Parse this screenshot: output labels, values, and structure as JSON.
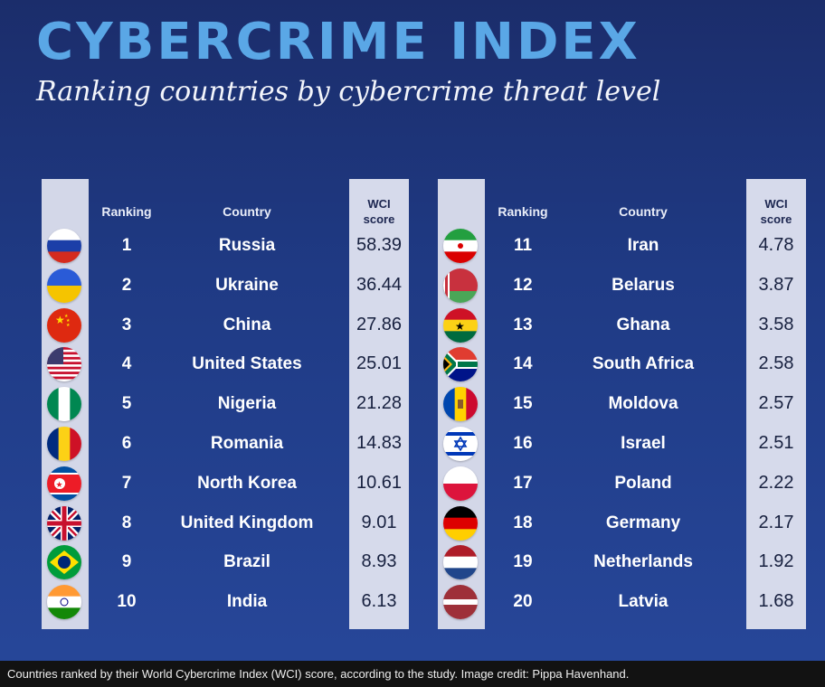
{
  "header": {
    "title": "CYBERCRIME INDEX",
    "subtitle": "Ranking countries by cybercrime threat level"
  },
  "columns": {
    "ranking": "Ranking",
    "country": "Country",
    "score_line1": "WCI",
    "score_line2": "score"
  },
  "chart_data": {
    "type": "table",
    "title": "CYBERCRIME INDEX",
    "subtitle": "Ranking countries by cybercrime threat level",
    "columns": [
      "Ranking",
      "Country",
      "WCI score"
    ],
    "rows": [
      {
        "rank": "1",
        "country": "Russia",
        "score": "58.39",
        "flag": "russia-flag-icon"
      },
      {
        "rank": "2",
        "country": "Ukraine",
        "score": "36.44",
        "flag": "ukraine-flag-icon"
      },
      {
        "rank": "3",
        "country": "China",
        "score": "27.86",
        "flag": "china-flag-icon"
      },
      {
        "rank": "4",
        "country": "United States",
        "score": "25.01",
        "flag": "united-states-flag-icon"
      },
      {
        "rank": "5",
        "country": "Nigeria",
        "score": "21.28",
        "flag": "nigeria-flag-icon"
      },
      {
        "rank": "6",
        "country": "Romania",
        "score": "14.83",
        "flag": "romania-flag-icon"
      },
      {
        "rank": "7",
        "country": "North Korea",
        "score": "10.61",
        "flag": "north-korea-flag-icon"
      },
      {
        "rank": "8",
        "country": "United Kingdom",
        "score": "9.01",
        "flag": "united-kingdom-flag-icon"
      },
      {
        "rank": "9",
        "country": "Brazil",
        "score": "8.93",
        "flag": "brazil-flag-icon"
      },
      {
        "rank": "10",
        "country": "India",
        "score": "6.13",
        "flag": "india-flag-icon"
      },
      {
        "rank": "11",
        "country": "Iran",
        "score": "4.78",
        "flag": "iran-flag-icon"
      },
      {
        "rank": "12",
        "country": "Belarus",
        "score": "3.87",
        "flag": "belarus-flag-icon"
      },
      {
        "rank": "13",
        "country": "Ghana",
        "score": "3.58",
        "flag": "ghana-flag-icon"
      },
      {
        "rank": "14",
        "country": "South Africa",
        "score": "2.58",
        "flag": "south-africa-flag-icon"
      },
      {
        "rank": "15",
        "country": "Moldova",
        "score": "2.57",
        "flag": "moldova-flag-icon"
      },
      {
        "rank": "16",
        "country": "Israel",
        "score": "2.51",
        "flag": "israel-flag-icon"
      },
      {
        "rank": "17",
        "country": "Poland",
        "score": "2.22",
        "flag": "poland-flag-icon"
      },
      {
        "rank": "18",
        "country": "Germany",
        "score": "2.17",
        "flag": "germany-flag-icon"
      },
      {
        "rank": "19",
        "country": "Netherlands",
        "score": "1.92",
        "flag": "netherlands-flag-icon"
      },
      {
        "rank": "20",
        "country": "Latvia",
        "score": "1.68",
        "flag": "latvia-flag-icon"
      }
    ]
  },
  "colors": {
    "title": "#5aa7e6",
    "background": "#1f3a84",
    "column_fill": "#d6daeb"
  },
  "caption": "Countries ranked by their World Cybercrime Index (WCI) score, according to the study. Image credit: Pippa Havenhand."
}
